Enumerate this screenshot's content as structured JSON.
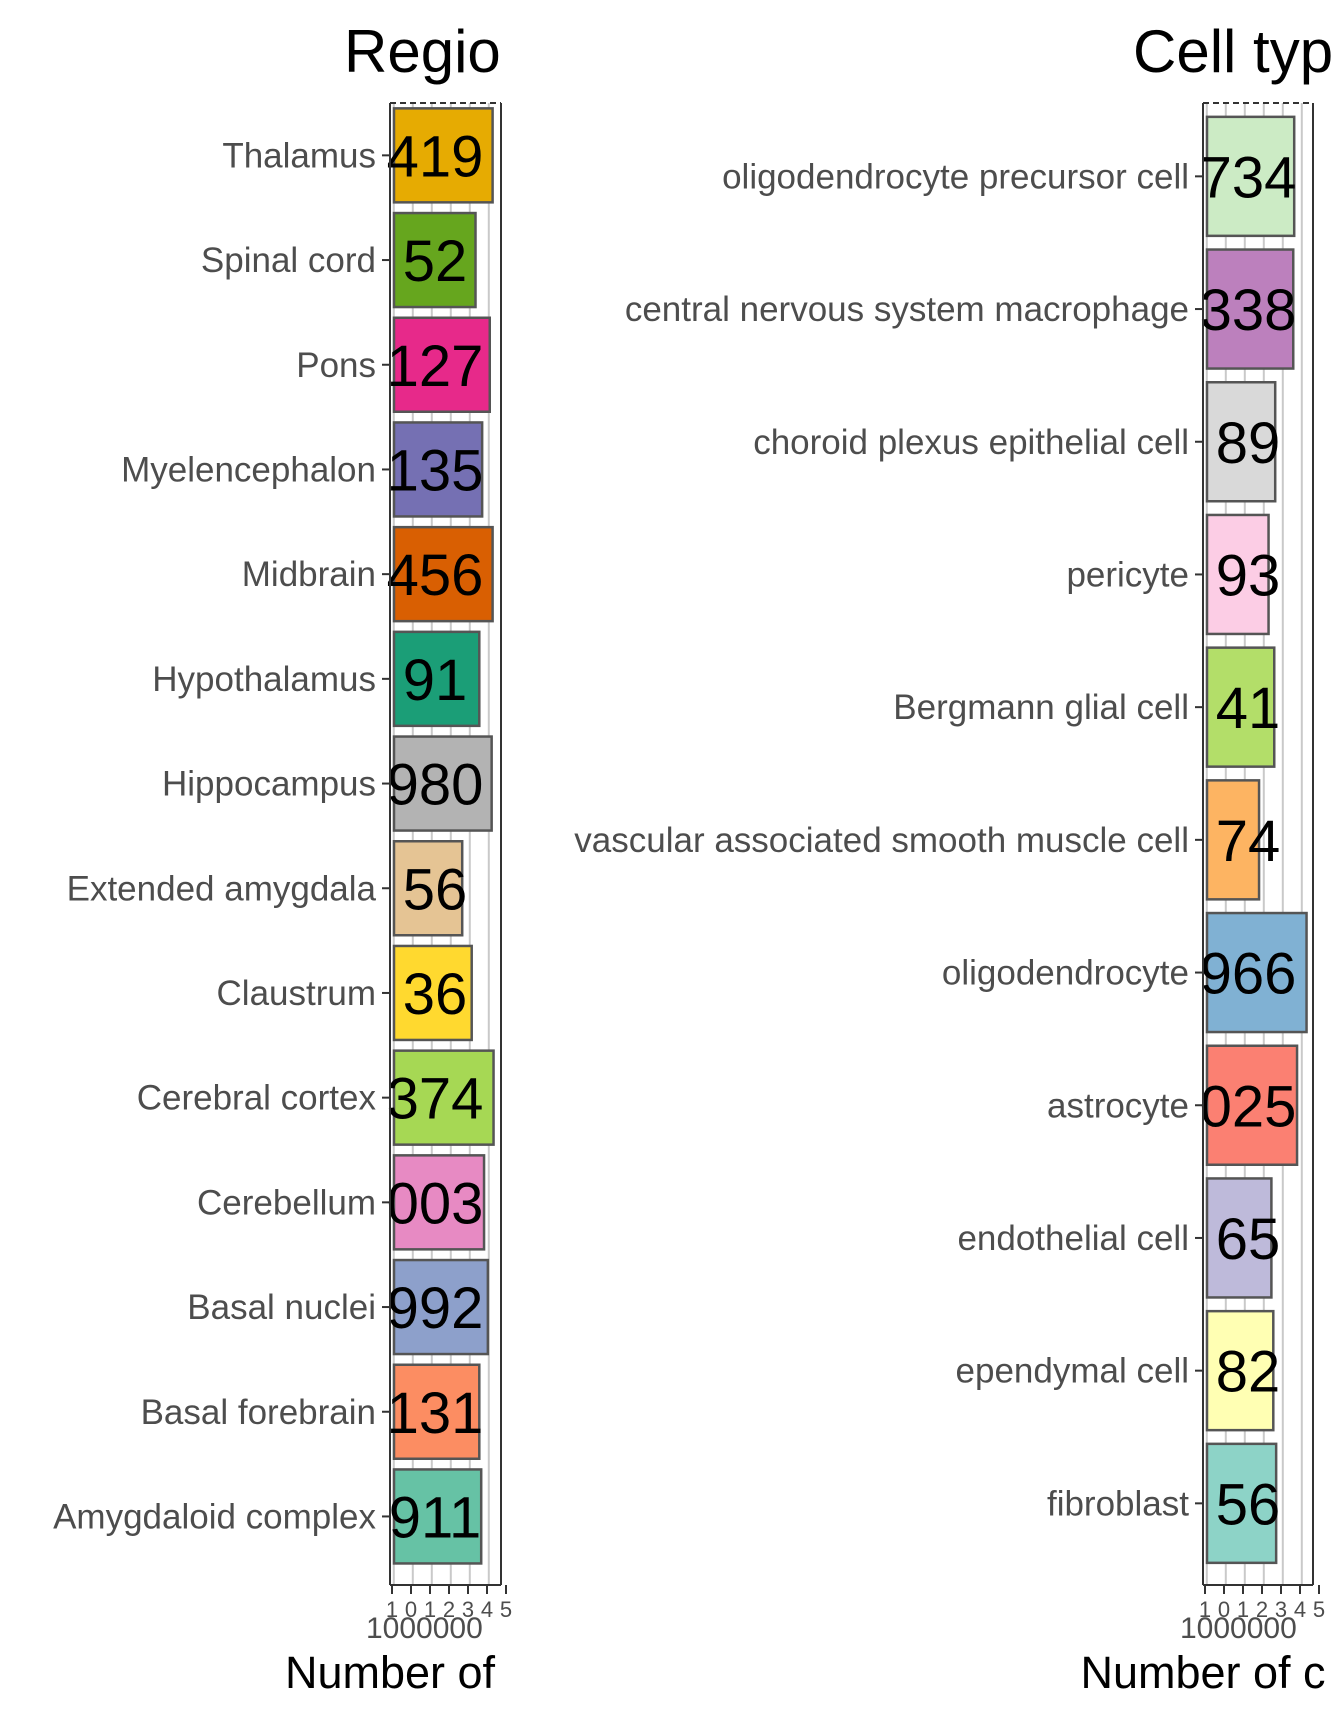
{
  "chart_data": [
    {
      "type": "bar",
      "orientation": "horizontal",
      "title": "Regio",
      "xlabel": "Number of",
      "ylabel": "",
      "x_tick_labels": [
        "1",
        "0",
        "1",
        "2",
        "3",
        "4",
        "5"
      ],
      "x_tick_label_bottom": "1000000",
      "grid": true,
      "colors": [
        "#E6AB02",
        "#66A61E",
        "#E7298A",
        "#7570B3",
        "#D95F02",
        "#1B9E77",
        "#B3B3B3",
        "#E5C494",
        "#FFD92F",
        "#A6D854",
        "#E78AC3",
        "#8DA0CB",
        "#FC8D62",
        "#66C2A5"
      ],
      "categories": [
        "Thalamus",
        "Spinal cord",
        "Pons",
        "Myelencephalon",
        "Midbrain",
        "Hypothalamus",
        "Hippocampus",
        "Extended amygdala",
        "Claustrum",
        "Cerebral cortex",
        "Cerebellum",
        "Basal nuclei",
        "Basal forebrain",
        "Amygdaloid complex"
      ],
      "values": [
        5.2,
        4.3,
        5.05,
        4.65,
        5.2,
        4.5,
        5.15,
        3.6,
        4.1,
        5.25,
        4.75,
        4.95,
        4.5,
        4.6
      ],
      "value_labels": [
        "419",
        "52",
        "127",
        "135",
        "456",
        "91",
        "980",
        "56",
        "36",
        "374",
        "003",
        "992",
        "131",
        "911"
      ]
    },
    {
      "type": "bar",
      "orientation": "horizontal",
      "title": "Cell typ",
      "xlabel": "Number of c",
      "ylabel": "",
      "x_tick_labels": [
        "1",
        "0",
        "1",
        "2",
        "3",
        "4",
        "5"
      ],
      "x_tick_label_bottom": "1000000",
      "grid": true,
      "colors": [
        "#CCEBC5",
        "#BC80BD",
        "#D9D9D9",
        "#FCCDE5",
        "#B3DE69",
        "#FDB462",
        "#80B1D3",
        "#FB8072",
        "#BEBADA",
        "#FFFFB3",
        "#8DD3C7"
      ],
      "categories": [
        "oligodendrocyte precursor cell",
        "central nervous system macrophage",
        "choroid plexus epithelial cell",
        "pericyte",
        "Bergmann glial cell",
        "vascular associated smooth muscle cell",
        "oligodendrocyte",
        "astrocyte",
        "endothelial cell",
        "ependymal cell",
        "fibroblast"
      ],
      "values": [
        4.6,
        4.55,
        3.6,
        3.25,
        3.55,
        2.75,
        5.25,
        4.75,
        3.4,
        3.5,
        3.65
      ],
      "value_labels": [
        "734",
        "338",
        "89",
        "93",
        "41",
        "74",
        "966",
        "025",
        "65",
        "82",
        "56"
      ]
    }
  ]
}
